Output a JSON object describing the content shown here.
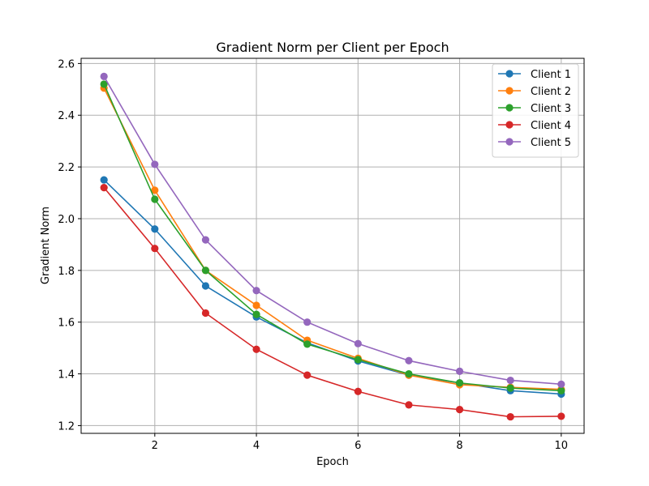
{
  "chart_data": {
    "type": "line",
    "title": "Gradient Norm per Client per Epoch",
    "xlabel": "Epoch",
    "ylabel": "Gradient Norm",
    "xlim": [
      0.55,
      10.45
    ],
    "ylim": [
      1.17,
      2.62
    ],
    "xticks": [
      2,
      4,
      6,
      8,
      10
    ],
    "yticks": [
      1.2,
      1.4,
      1.6,
      1.8,
      2.0,
      2.2,
      2.4,
      2.6
    ],
    "ytick_labels": [
      "1.2",
      "1.4",
      "1.6",
      "1.8",
      "2.0",
      "2.2",
      "2.4",
      "2.6"
    ],
    "grid": true,
    "legend_position": "top-right",
    "x": [
      1,
      2,
      3,
      4,
      5,
      6,
      7,
      8,
      9,
      10
    ],
    "series": [
      {
        "name": "Client 1",
        "color": "#1f77b4",
        "values": [
          2.15,
          1.96,
          1.74,
          1.62,
          1.52,
          1.45,
          1.395,
          1.365,
          1.335,
          1.322
        ]
      },
      {
        "name": "Client 2",
        "color": "#ff7f0e",
        "values": [
          2.505,
          2.11,
          1.8,
          1.665,
          1.53,
          1.46,
          1.395,
          1.358,
          1.348,
          1.34
        ]
      },
      {
        "name": "Client 3",
        "color": "#2ca02c",
        "values": [
          2.52,
          2.075,
          1.8,
          1.63,
          1.515,
          1.455,
          1.4,
          1.365,
          1.345,
          1.335
        ]
      },
      {
        "name": "Client 4",
        "color": "#d62728",
        "values": [
          2.12,
          1.885,
          1.635,
          1.495,
          1.395,
          1.332,
          1.28,
          1.262,
          1.234,
          1.236
        ]
      },
      {
        "name": "Client 5",
        "color": "#9467bd",
        "values": [
          2.55,
          2.21,
          1.918,
          1.722,
          1.6,
          1.517,
          1.451,
          1.41,
          1.375,
          1.36
        ]
      }
    ]
  }
}
